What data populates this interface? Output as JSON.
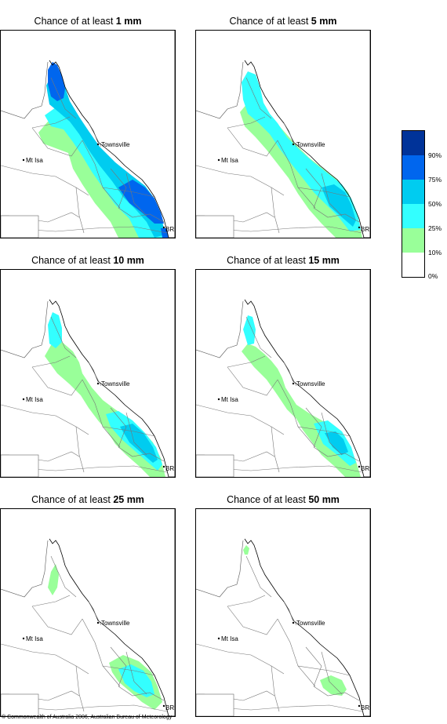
{
  "panels": [
    {
      "title_prefix": "Chance of at least ",
      "amount": "1 mm"
    },
    {
      "title_prefix": "Chance of at least ",
      "amount": "5 mm"
    },
    {
      "title_prefix": "Chance of at least ",
      "amount": "10 mm"
    },
    {
      "title_prefix": "Chance of at least ",
      "amount": "15 mm"
    },
    {
      "title_prefix": "Chance of at least ",
      "amount": "25 mm"
    },
    {
      "title_prefix": "Chance of at least ",
      "amount": "50 mm"
    }
  ],
  "places": {
    "townsville": "Townsville",
    "mt_isa": "Mt Isa",
    "brisbane": "BRIS"
  },
  "legend": {
    "colors": [
      "#003399",
      "#0066ee",
      "#00ccf0",
      "#33ffff",
      "#99ff99",
      "#ffffff"
    ],
    "ticks": [
      "90%",
      "75%",
      "50%",
      "25%",
      "10%",
      "0%"
    ]
  },
  "copyright": "© Commonwealth of Australia 2006, Australian Bureau of Meteorology"
}
